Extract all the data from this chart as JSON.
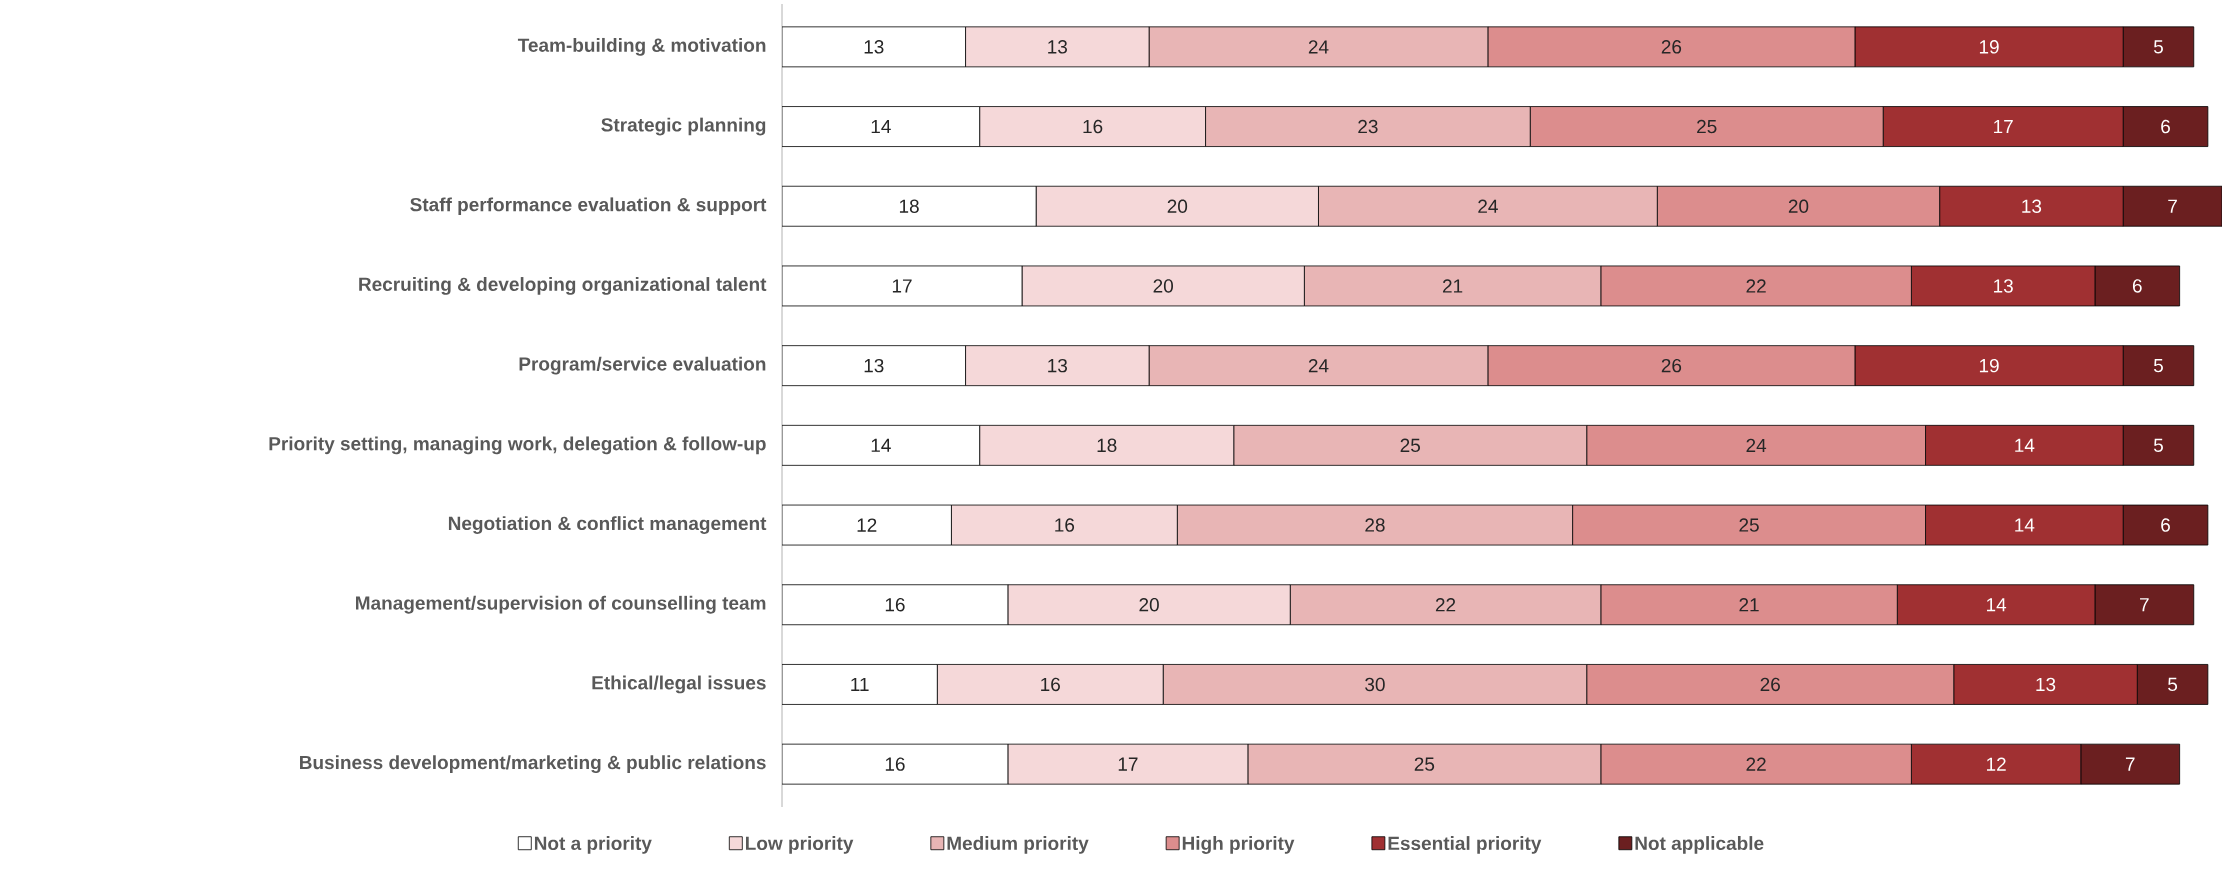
{
  "chart_data": {
    "type": "bar",
    "orientation": "horizontal",
    "stacked": true,
    "data_labels": true,
    "legend": "bottom",
    "tick_labels": "y",
    "xlim": [
      0,
      102
    ],
    "categories": [
      "Team-building & motivation",
      "Strategic planning",
      "Staff performance evaluation & support",
      "Recruiting & developing organizational talent",
      "Program/service evaluation",
      "Priority setting, managing work, delegation & follow-up",
      "Negotiation & conflict management",
      "Management/supervision of counselling team",
      "Ethical/legal issues",
      "Business development/marketing & public relations"
    ],
    "series": [
      {
        "name": "Not a priority",
        "color": "#ffffff",
        "values": [
          13,
          14,
          18,
          17,
          13,
          14,
          12,
          16,
          11,
          16
        ]
      },
      {
        "name": "Low priority",
        "color": "#f5d8d9",
        "values": [
          13,
          16,
          20,
          20,
          13,
          18,
          16,
          20,
          16,
          17
        ]
      },
      {
        "name": "Medium priority",
        "color": "#e8b5b5",
        "values": [
          24,
          23,
          24,
          21,
          24,
          25,
          28,
          22,
          30,
          25
        ]
      },
      {
        "name": "High priority",
        "color": "#dc8d8d",
        "values": [
          26,
          25,
          20,
          22,
          26,
          24,
          25,
          21,
          26,
          22
        ]
      },
      {
        "name": "Essential priority",
        "color": "#a03032",
        "values": [
          19,
          17,
          13,
          13,
          19,
          14,
          14,
          14,
          13,
          12
        ]
      },
      {
        "name": "Not applicable",
        "color": "#6b1f20",
        "values": [
          5,
          6,
          7,
          6,
          5,
          5,
          6,
          7,
          5,
          7
        ]
      }
    ]
  }
}
